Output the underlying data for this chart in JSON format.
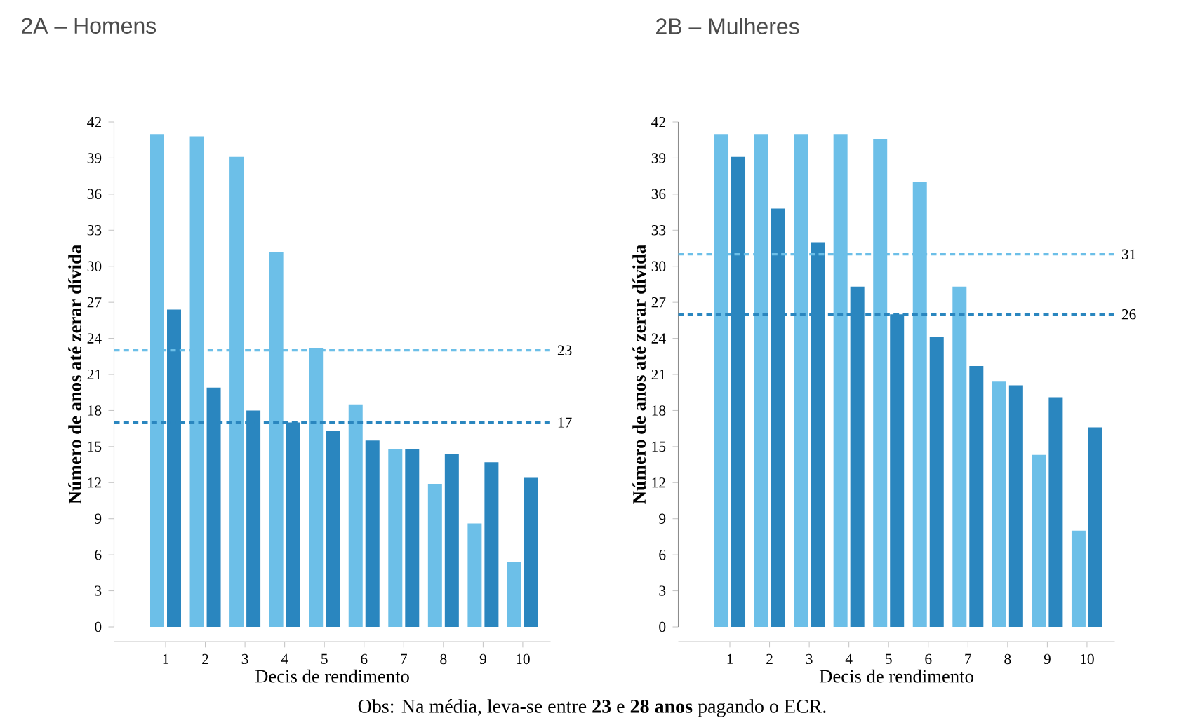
{
  "chart_data": [
    {
      "type": "bar",
      "title": "2A – Homens",
      "xlabel": "Decis de rendimento",
      "ylabel": "Número de anos até zerar dívida",
      "categories": [
        "1",
        "2",
        "3",
        "4",
        "5",
        "6",
        "7",
        "8",
        "9",
        "10"
      ],
      "series": [
        {
          "color": "#6cbfe8",
          "values": [
            41,
            40.8,
            39.1,
            31.2,
            23.2,
            18.5,
            14.8,
            11.9,
            8.6,
            5.4
          ]
        },
        {
          "color": "#2a86bf",
          "values": [
            26.4,
            19.9,
            18.0,
            17.0,
            16.3,
            15.5,
            14.8,
            14.4,
            13.7,
            12.4
          ]
        }
      ],
      "ylim": [
        0,
        42
      ],
      "yticks": [
        0,
        3,
        6,
        9,
        12,
        15,
        18,
        21,
        24,
        27,
        30,
        33,
        36,
        39,
        42
      ],
      "ref_lines": [
        {
          "axis": "y",
          "value": 23,
          "label": "23",
          "color": "#6cbfe8",
          "line_style": "dashed"
        },
        {
          "axis": "y",
          "value": 17,
          "label": "17",
          "color": "#2a86bf",
          "line_style": "dashed"
        }
      ],
      "annotations": [
        "Obs: Na média, leva-se entre **23** e **28 anos** pagando o ECR."
      ]
    },
    {
      "type": "bar",
      "title": "2B – Mulheres",
      "xlabel": "Decis de rendimento",
      "ylabel": "Número de anos até zerar dívida",
      "categories": [
        "1",
        "2",
        "3",
        "4",
        "5",
        "6",
        "7",
        "8",
        "9",
        "10"
      ],
      "series": [
        {
          "color": "#6cbfe8",
          "values": [
            41,
            41,
            41,
            41,
            40.6,
            37.0,
            28.3,
            20.4,
            14.3,
            8.0
          ]
        },
        {
          "color": "#2a86bf",
          "values": [
            39.1,
            34.8,
            32.0,
            28.3,
            26.0,
            24.1,
            21.7,
            20.1,
            19.1,
            16.6
          ]
        }
      ],
      "ylim": [
        0,
        42
      ],
      "yticks": [
        0,
        3,
        6,
        9,
        12,
        15,
        18,
        21,
        24,
        27,
        30,
        33,
        36,
        39,
        42
      ],
      "ref_lines": [
        {
          "axis": "y",
          "value": 31,
          "label": "31",
          "color": "#6cbfe8",
          "line_style": "dashed"
        },
        {
          "axis": "y",
          "value": 26,
          "label": "26",
          "color": "#2a86bf",
          "line_style": "dashed"
        }
      ]
    }
  ]
}
